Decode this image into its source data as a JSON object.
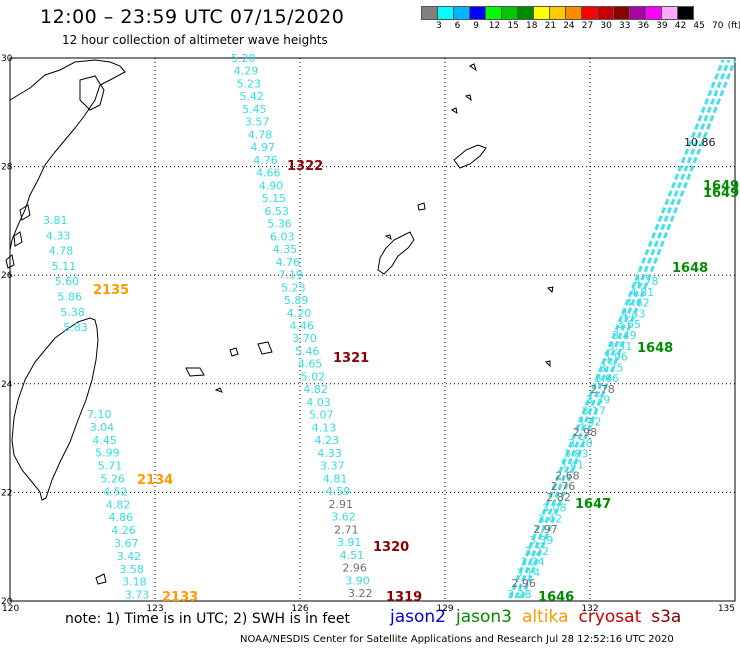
{
  "title": "12:00 – 23:59 UTC 07/15/2020",
  "subtitle": "12 hour collection of altimeter wave heights",
  "legend": {
    "colors": [
      "#808080",
      "#00ffff",
      "#00b4ff",
      "#0000ff",
      "#00ff00",
      "#00c800",
      "#008c00",
      "#ffff00",
      "#ffc800",
      "#ff8c00",
      "#ff0000",
      "#c80000",
      "#8c0000",
      "#aa00aa",
      "#ff00ff",
      "#ffaaff",
      "#000000"
    ],
    "labels": [
      "3",
      "6",
      "9",
      "12",
      "15",
      "18",
      "21",
      "24",
      "27",
      "30",
      "33",
      "36",
      "39",
      "42",
      "45",
      "70",
      "(ft)"
    ]
  },
  "axes": {
    "lat_labels": [
      "30",
      "28",
      "26",
      "24",
      "22",
      "20"
    ],
    "lon_labels": [
      "120",
      "123",
      "126",
      "129",
      "132",
      "135"
    ]
  },
  "note": "note: 1) Time is in UTC; 2) SWH is in feet",
  "satellites": [
    {
      "name": "jason2",
      "color": "#0000dd"
    },
    {
      "name": "jason3",
      "color": "#008c00"
    },
    {
      "name": "altika",
      "color": "#ff9900"
    },
    {
      "name": "cryosat",
      "color": "#cc0000"
    },
    {
      "name": "s3a",
      "color": "#8c0000"
    }
  ],
  "credit": "NOAA/NESDIS Center for Satellite Applications and Research    Jul 28 12:52:16 UTC 2020",
  "tracks": {
    "altika_west": {
      "color": "#ff9900",
      "segments": [
        {
          "time": "2135",
          "values": [
            "3.81",
            "4.33",
            "4.78",
            "5.11",
            "5.60",
            "5.86",
            "5.38",
            "5.83"
          ]
        },
        {
          "time": "2134",
          "values": [
            "7.10",
            "3.04",
            "4.45",
            "5.99",
            "5.71",
            "5.26",
            "4.52",
            "4.82",
            "4.86",
            "4.26",
            "3.67",
            "3.42",
            "3.58",
            "3.18",
            "3.73"
          ]
        },
        {
          "time": "2133",
          "values": []
        }
      ]
    },
    "s3a": {
      "color": "#8c0000",
      "values": [
        "5.20",
        "4.29",
        "5.23",
        "5.42",
        "5.45",
        "3.57",
        "4.78",
        "4.97",
        "4.76",
        "4.66",
        "4.90",
        "5.15",
        "6.53",
        "5.36",
        "6.03",
        "4.35",
        "4.76",
        "7.19",
        "5.23",
        "5.89",
        "4.20",
        "4.46",
        "3.70",
        "5.46",
        "4.65",
        "5.02",
        "4.82",
        "4.03",
        "5.07",
        "4.13",
        "4.23",
        "4.33",
        "3.37",
        "4.81",
        "4.59",
        "2.91",
        "3.62",
        "2.71",
        "3.91",
        "4.51",
        "2.96",
        "3.90",
        "3.22"
      ],
      "times": [
        "1322",
        "1321",
        "1320",
        "1319"
      ]
    },
    "jason3": {
      "color": "#008c00",
      "times": [
        "1649",
        "1649",
        "1648",
        "1648",
        "1647",
        "1646"
      ],
      "values": [
        "10.86",
        "4.78",
        "4.81",
        "4.62",
        "4.43",
        "3.65",
        "3.49",
        "3.51",
        "3.96",
        "3.25",
        "3.66",
        "2.78",
        "3.39",
        "3.17",
        "3.42",
        "2.98",
        "3.20",
        "3.83",
        "3.41",
        "2.68",
        "2.76",
        "2.82",
        "3.08",
        "3.42",
        "2.97",
        "3.39",
        "3.22",
        "3.24",
        "3.14",
        "2.96",
        "3.28"
      ]
    }
  }
}
